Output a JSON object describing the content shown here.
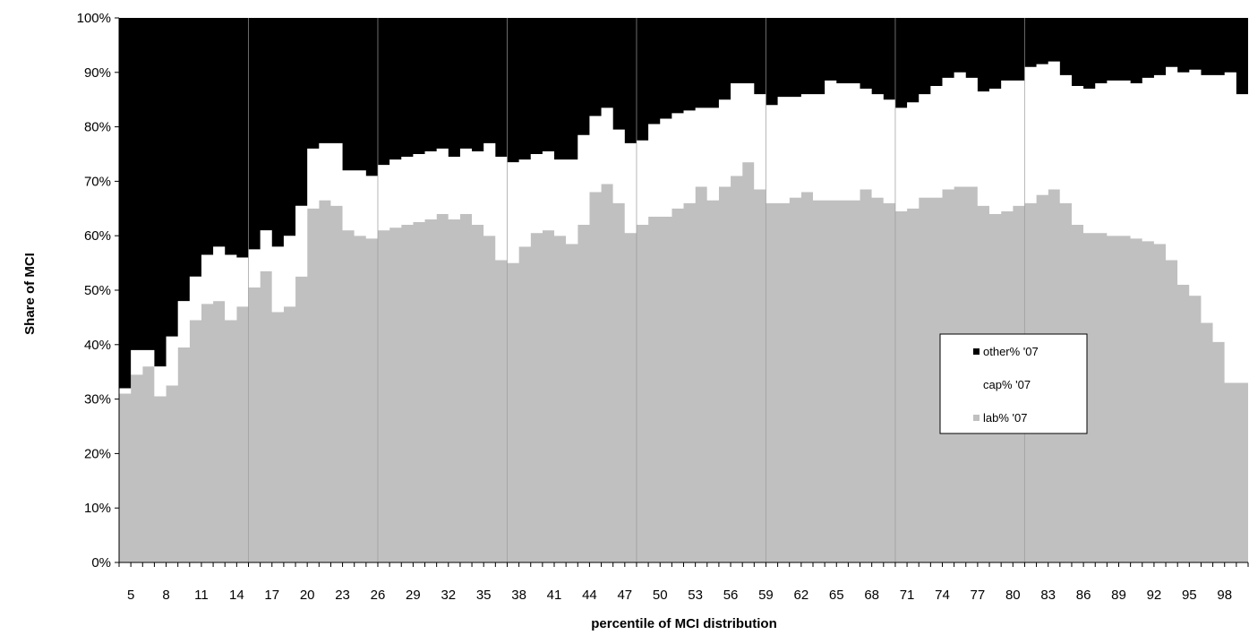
{
  "chart_data": {
    "type": "area",
    "stacked": true,
    "percent_stacked": true,
    "title": "",
    "xlabel": "percentile of MCI distribution",
    "ylabel": "Share of MCI",
    "ylim": [
      0,
      100
    ],
    "y_ticks": [
      "0%",
      "10%",
      "20%",
      "30%",
      "40%",
      "50%",
      "60%",
      "70%",
      "80%",
      "90%",
      "100%"
    ],
    "x": [
      4,
      5,
      6,
      7,
      8,
      9,
      10,
      11,
      12,
      13,
      14,
      15,
      16,
      17,
      18,
      19,
      20,
      21,
      22,
      23,
      24,
      25,
      26,
      27,
      28,
      29,
      30,
      31,
      32,
      33,
      34,
      35,
      36,
      37,
      38,
      39,
      40,
      41,
      42,
      43,
      44,
      45,
      46,
      47,
      48,
      49,
      50,
      51,
      52,
      53,
      54,
      55,
      56,
      57,
      58,
      59,
      60,
      61,
      62,
      63,
      64,
      65,
      66,
      67,
      68,
      69,
      70,
      71,
      72,
      73,
      74,
      75,
      76,
      77,
      78,
      79,
      80,
      81,
      82,
      83,
      84,
      85,
      86,
      87,
      88,
      89,
      90,
      91,
      92,
      93,
      94,
      95,
      96,
      97,
      98,
      99
    ],
    "x_tick_labels": [
      "5",
      "8",
      "11",
      "14",
      "17",
      "20",
      "23",
      "26",
      "29",
      "32",
      "35",
      "38",
      "41",
      "44",
      "47",
      "50",
      "53",
      "56",
      "59",
      "62",
      "65",
      "68",
      "71",
      "74",
      "77",
      "80",
      "83",
      "86",
      "89",
      "92",
      "95",
      "98"
    ],
    "x_vertical_grid_at": [
      15,
      26,
      37,
      48,
      59,
      70,
      81
    ],
    "grid": true,
    "legend_position": "right",
    "series": [
      {
        "name": "lab% '07",
        "color": "#c0c0c0",
        "values": [
          31,
          34.5,
          36,
          30.5,
          32.5,
          39.5,
          44.5,
          47.5,
          48,
          44.5,
          47,
          50.5,
          53.5,
          46,
          47,
          52.5,
          65,
          66.5,
          65.5,
          61,
          60,
          59.5,
          61,
          61.5,
          62,
          62.5,
          63,
          64,
          63,
          64,
          62,
          60,
          55.5,
          55,
          58,
          60.5,
          61,
          60,
          58.5,
          62,
          68,
          69.5,
          66,
          60.5,
          62,
          63.5,
          63.5,
          65,
          66,
          69,
          66.5,
          69,
          71,
          73.5,
          68.5,
          66,
          66,
          67,
          68,
          66.5,
          66.5,
          66.5,
          66.5,
          68.5,
          67,
          66,
          64.5,
          65,
          67,
          67,
          68.5,
          69,
          69,
          65.5,
          64,
          64.5,
          65.5,
          66,
          67.5,
          68.5,
          66,
          62,
          60.5,
          60.5,
          60,
          60,
          59.5,
          59,
          58.5,
          55.5,
          51,
          49,
          44,
          40.5,
          33,
          33
        ]
      },
      {
        "name": "cap% '07",
        "color": "#ffffff",
        "values": [
          1,
          4.5,
          3,
          5.5,
          9,
          8.5,
          8,
          9,
          10,
          12,
          9,
          7,
          7.5,
          12,
          13,
          13,
          11,
          10.5,
          11.5,
          11,
          12,
          11.5,
          12,
          12.5,
          12.5,
          12.5,
          12.5,
          12,
          11.5,
          12,
          13.5,
          17,
          19,
          18.5,
          16,
          14.5,
          14.5,
          14,
          15.5,
          16.5,
          14,
          14,
          13.5,
          16.5,
          15.5,
          17,
          18,
          17.5,
          17,
          14.5,
          17,
          16,
          17,
          14.5,
          17.5,
          18,
          19.5,
          18.5,
          18,
          19.5,
          22,
          21.5,
          21.5,
          18.5,
          19,
          19,
          19,
          19.5,
          19,
          20.5,
          20.5,
          21,
          20,
          21,
          23,
          24,
          23,
          25,
          24,
          23.5,
          23.5,
          25.5,
          26.5,
          27.5,
          28.5,
          28.5,
          28.5,
          30,
          31,
          35.5,
          39,
          41.5,
          45.5,
          49,
          57,
          53
        ]
      },
      {
        "name": "other% '07",
        "color": "#000000",
        "values": [
          68,
          61,
          61,
          64,
          58.5,
          52,
          47.5,
          43.5,
          42,
          43.5,
          44,
          42.5,
          39,
          42,
          40,
          34.5,
          24,
          23,
          23,
          28,
          28,
          29,
          27,
          26,
          25.5,
          25,
          24.5,
          24,
          25.5,
          24,
          24.5,
          23,
          25.5,
          26.5,
          26,
          25,
          24.5,
          26,
          26,
          21.5,
          18,
          16.5,
          20.5,
          23,
          22.5,
          19.5,
          18.5,
          17.5,
          17,
          16.5,
          16.5,
          15,
          12,
          12,
          14,
          16,
          14.5,
          14.5,
          14,
          14,
          11.5,
          12,
          12,
          13,
          14,
          15,
          16.5,
          15.5,
          14,
          12.5,
          11,
          10,
          11,
          13.5,
          13,
          11.5,
          11.5,
          9,
          8.5,
          8,
          10.5,
          12.5,
          13,
          12,
          11.5,
          11.5,
          12,
          11,
          10.5,
          9,
          10,
          9.5,
          10.5,
          10.5,
          10,
          14
        ]
      }
    ]
  }
}
